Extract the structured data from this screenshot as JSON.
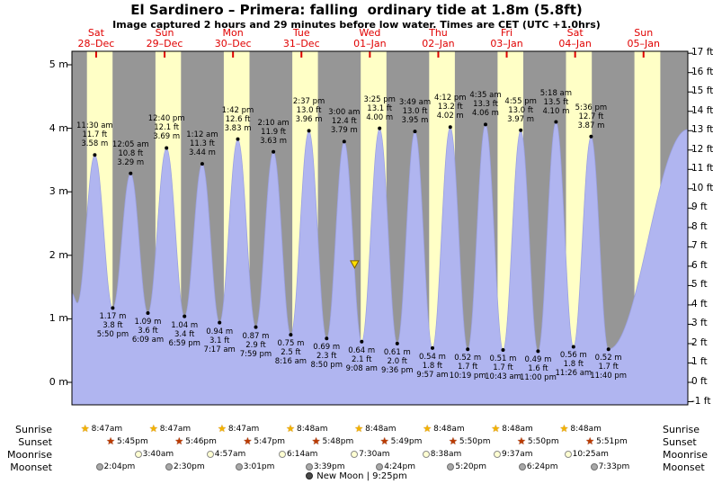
{
  "header": {
    "title": "El Sardinero – Primera: falling  ordinary tide at 1.8m (5.8ft)",
    "subtitle": "Image captured 2 hours and 29 minutes before low water. Times are CET (UTC +1.0hrs)"
  },
  "days": [
    {
      "name": "Sat",
      "date": "28–Dec"
    },
    {
      "name": "Sun",
      "date": "29–Dec"
    },
    {
      "name": "Mon",
      "date": "30–Dec"
    },
    {
      "name": "Tue",
      "date": "31–Dec"
    },
    {
      "name": "Wed",
      "date": "01–Jan"
    },
    {
      "name": "Thu",
      "date": "02–Jan"
    },
    {
      "name": "Fri",
      "date": "03–Jan"
    },
    {
      "name": "Sat",
      "date": "04–Jan"
    },
    {
      "name": "Sun",
      "date": "05–Jan"
    }
  ],
  "axes": {
    "left_labels": [
      "5 m",
      "4 m",
      "3 m",
      "2 m",
      "1 m",
      "0 m"
    ],
    "right_labels": [
      "17 ft",
      "16 ft",
      "15 ft",
      "14 ft",
      "13 ft",
      "12 ft",
      "11 ft",
      "10 ft",
      "9 ft",
      "8 ft",
      "7 ft",
      "6 ft",
      "5 ft",
      "4 ft",
      "3 ft",
      "2 ft",
      "1 ft",
      "0 ft",
      "-1 ft"
    ]
  },
  "chart_data": {
    "type": "area",
    "title": "El Sardinero – Primera tide height",
    "x_unit": "hours since Sat 28-Dec 00:00 CET",
    "y_left": {
      "unit": "m",
      "ticks": [
        0,
        1,
        2,
        3,
        4,
        5
      ]
    },
    "y_right": {
      "unit": "ft",
      "ticks": [
        -1,
        0,
        1,
        2,
        3,
        4,
        5,
        6,
        7,
        8,
        9,
        10,
        11,
        12,
        13,
        14,
        15,
        16,
        17
      ]
    },
    "points": [
      {
        "t": 3.5,
        "m": 1.4,
        "kind": "edge"
      },
      {
        "t": 5.4,
        "m": 1.25,
        "kind": "low"
      },
      {
        "t": 11.5,
        "m": 3.58,
        "kind": "high",
        "label_time": "11:30 am",
        "label_ft": "11.7 ft",
        "label_m": "3.58 m"
      },
      {
        "t": 17.83,
        "m": 1.17,
        "kind": "low",
        "label_time": "5:50 pm",
        "label_ft": "3.8 ft",
        "label_m": "1.17 m"
      },
      {
        "t": 24.08,
        "m": 3.29,
        "kind": "high",
        "label_time": "12:05 am",
        "label_ft": "10.8 ft",
        "label_m": "3.29 m"
      },
      {
        "t": 30.15,
        "m": 1.09,
        "kind": "low",
        "label_time": "6:09 am",
        "label_ft": "3.6 ft",
        "label_m": "1.09 m"
      },
      {
        "t": 36.67,
        "m": 3.69,
        "kind": "high",
        "label_time": "12:40 pm",
        "label_ft": "12.1 ft",
        "label_m": "3.69 m"
      },
      {
        "t": 42.98,
        "m": 1.04,
        "kind": "low",
        "label_time": "6:59 pm",
        "label_ft": "3.4 ft",
        "label_m": "1.04 m"
      },
      {
        "t": 49.2,
        "m": 3.44,
        "kind": "high",
        "label_time": "1:12 am",
        "label_ft": "11.3 ft",
        "label_m": "3.44 m"
      },
      {
        "t": 55.28,
        "m": 0.94,
        "kind": "low",
        "label_time": "7:17 am",
        "label_ft": "3.1 ft",
        "label_m": "0.94 m"
      },
      {
        "t": 61.7,
        "m": 3.83,
        "kind": "high",
        "label_time": "1:42 pm",
        "label_ft": "12.6 ft",
        "label_m": "3.83 m"
      },
      {
        "t": 67.98,
        "m": 0.87,
        "kind": "low",
        "label_time": "7:59 pm",
        "label_ft": "2.9 ft",
        "label_m": "0.87 m"
      },
      {
        "t": 74.17,
        "m": 3.63,
        "kind": "high",
        "label_time": "2:10 am",
        "label_ft": "11.9 ft",
        "label_m": "3.63 m"
      },
      {
        "t": 80.27,
        "m": 0.75,
        "kind": "low",
        "label_time": "8:16 am",
        "label_ft": "2.5 ft",
        "label_m": "0.75 m"
      },
      {
        "t": 86.62,
        "m": 3.96,
        "kind": "high",
        "label_time": "2:37 pm",
        "label_ft": "13.0 ft",
        "label_m": "3.96 m"
      },
      {
        "t": 92.83,
        "m": 0.69,
        "kind": "low",
        "label_time": "8:50 pm",
        "label_ft": "2.3 ft",
        "label_m": "0.69 m"
      },
      {
        "t": 99.0,
        "m": 3.79,
        "kind": "high",
        "label_time": "3:00 am",
        "label_ft": "12.4 ft",
        "label_m": "3.79 m"
      },
      {
        "t": 105.13,
        "m": 0.64,
        "kind": "low",
        "label_time": "9:08 am",
        "label_ft": "2.1 ft",
        "label_m": "0.64 m"
      },
      {
        "t": 111.42,
        "m": 4.0,
        "kind": "high",
        "label_time": "3:25 pm",
        "label_ft": "13.1 ft",
        "label_m": "4.00 m"
      },
      {
        "t": 117.6,
        "m": 0.61,
        "kind": "low",
        "label_time": "9:36 pm",
        "label_ft": "2.0 ft",
        "label_m": "0.61 m"
      },
      {
        "t": 123.82,
        "m": 3.95,
        "kind": "high",
        "label_time": "3:49 am",
        "label_ft": "13.0 ft",
        "label_m": "3.95 m"
      },
      {
        "t": 129.95,
        "m": 0.54,
        "kind": "low",
        "label_time": "9:57 am",
        "label_ft": "1.8 ft",
        "label_m": "0.54 m"
      },
      {
        "t": 136.2,
        "m": 4.02,
        "kind": "high",
        "label_time": "4:12 pm",
        "label_ft": "13.2 ft",
        "label_m": "4.02 m"
      },
      {
        "t": 142.32,
        "m": 0.52,
        "kind": "low",
        "label_time": "10:19 pm",
        "label_ft": "1.7 ft",
        "label_m": "0.52 m"
      },
      {
        "t": 148.58,
        "m": 4.06,
        "kind": "high",
        "label_time": "4:35 am",
        "label_ft": "13.3 ft",
        "label_m": "4.06 m"
      },
      {
        "t": 154.72,
        "m": 0.51,
        "kind": "low",
        "label_time": "10:43 am",
        "label_ft": "1.7 ft",
        "label_m": "0.51 m"
      },
      {
        "t": 160.92,
        "m": 3.97,
        "kind": "high",
        "label_time": "4:55 pm",
        "label_ft": "13.0 ft",
        "label_m": "3.97 m"
      },
      {
        "t": 167.0,
        "m": 0.49,
        "kind": "low",
        "label_time": "11:00 pm",
        "label_ft": "1.6 ft",
        "label_m": "0.49 m"
      },
      {
        "t": 173.3,
        "m": 4.1,
        "kind": "high",
        "label_time": "5:18 am",
        "label_ft": "13.5 ft",
        "label_m": "4.10 m"
      },
      {
        "t": 179.43,
        "m": 0.56,
        "kind": "low",
        "label_time": "11:26 am",
        "label_ft": "1.8 ft",
        "label_m": "0.56 m"
      },
      {
        "t": 185.6,
        "m": 3.87,
        "kind": "high",
        "label_time": "5:36 pm",
        "label_ft": "12.7 ft",
        "label_m": "3.87 m"
      },
      {
        "t": 191.67,
        "m": 0.52,
        "kind": "low",
        "label_time": "11:40 pm",
        "label_ft": "1.7 ft",
        "label_m": "0.52 m"
      },
      {
        "t": 219.5,
        "m": 3.98,
        "kind": "edge"
      }
    ],
    "current_marker": {
      "t": 102.65,
      "m": 1.8,
      "ft": 5.8
    }
  },
  "astro": {
    "rows": [
      {
        "id": "sunrise",
        "label": "Sunrise",
        "icon": "sunrise-star",
        "events": [
          {
            "day": 0,
            "h": 8.78,
            "time": "8:47am"
          },
          {
            "day": 1,
            "h": 8.78,
            "time": "8:47am"
          },
          {
            "day": 2,
            "h": 8.78,
            "time": "8:47am"
          },
          {
            "day": 3,
            "h": 8.8,
            "time": "8:48am"
          },
          {
            "day": 4,
            "h": 8.8,
            "time": "8:48am"
          },
          {
            "day": 5,
            "h": 8.8,
            "time": "8:48am"
          },
          {
            "day": 6,
            "h": 8.8,
            "time": "8:48am"
          },
          {
            "day": 7,
            "h": 8.8,
            "time": "8:48am"
          }
        ]
      },
      {
        "id": "sunset",
        "label": "Sunset",
        "icon": "sunset-star",
        "events": [
          {
            "day": 0,
            "h": 17.75,
            "time": "5:45pm"
          },
          {
            "day": 1,
            "h": 17.77,
            "time": "5:46pm"
          },
          {
            "day": 2,
            "h": 17.78,
            "time": "5:47pm"
          },
          {
            "day": 3,
            "h": 17.8,
            "time": "5:48pm"
          },
          {
            "day": 4,
            "h": 17.82,
            "time": "5:49pm"
          },
          {
            "day": 5,
            "h": 17.83,
            "time": "5:50pm"
          },
          {
            "day": 6,
            "h": 17.83,
            "time": "5:50pm"
          },
          {
            "day": 7,
            "h": 17.85,
            "time": "5:51pm"
          }
        ]
      },
      {
        "id": "moonrise",
        "label": "Moonrise",
        "icon": "moonrise-circle",
        "events": [
          {
            "day": 1,
            "h": 3.67,
            "time": "3:40am"
          },
          {
            "day": 2,
            "h": 4.95,
            "time": "4:57am"
          },
          {
            "day": 3,
            "h": 6.23,
            "time": "6:14am"
          },
          {
            "day": 4,
            "h": 7.5,
            "time": "7:30am"
          },
          {
            "day": 5,
            "h": 8.63,
            "time": "8:38am"
          },
          {
            "day": 6,
            "h": 9.62,
            "time": "9:37am"
          },
          {
            "day": 7,
            "h": 10.42,
            "time": "10:25am"
          }
        ]
      },
      {
        "id": "moonset",
        "label": "Moonset",
        "icon": "moonset-circle",
        "events": [
          {
            "day": 0,
            "h": 14.07,
            "time": "2:04pm"
          },
          {
            "day": 1,
            "h": 14.5,
            "time": "2:30pm"
          },
          {
            "day": 2,
            "h": 15.02,
            "time": "3:01pm"
          },
          {
            "day": 3,
            "h": 15.65,
            "time": "3:39pm"
          },
          {
            "day": 4,
            "h": 16.4,
            "time": "4:24pm"
          },
          {
            "day": 5,
            "h": 17.33,
            "time": "5:20pm"
          },
          {
            "day": 6,
            "h": 18.4,
            "time": "6:24pm"
          },
          {
            "day": 7,
            "h": 19.55,
            "time": "7:33pm"
          }
        ]
      }
    ],
    "new_moon": "New Moon | 9:25pm"
  },
  "colors": {
    "day_bg": "#ffffc6",
    "night_bg": "#969696",
    "water": "#b0b5f0",
    "day_label": "#e00000",
    "marker": "#ffe000",
    "marker_outline": "#806000",
    "border": "#000000"
  }
}
